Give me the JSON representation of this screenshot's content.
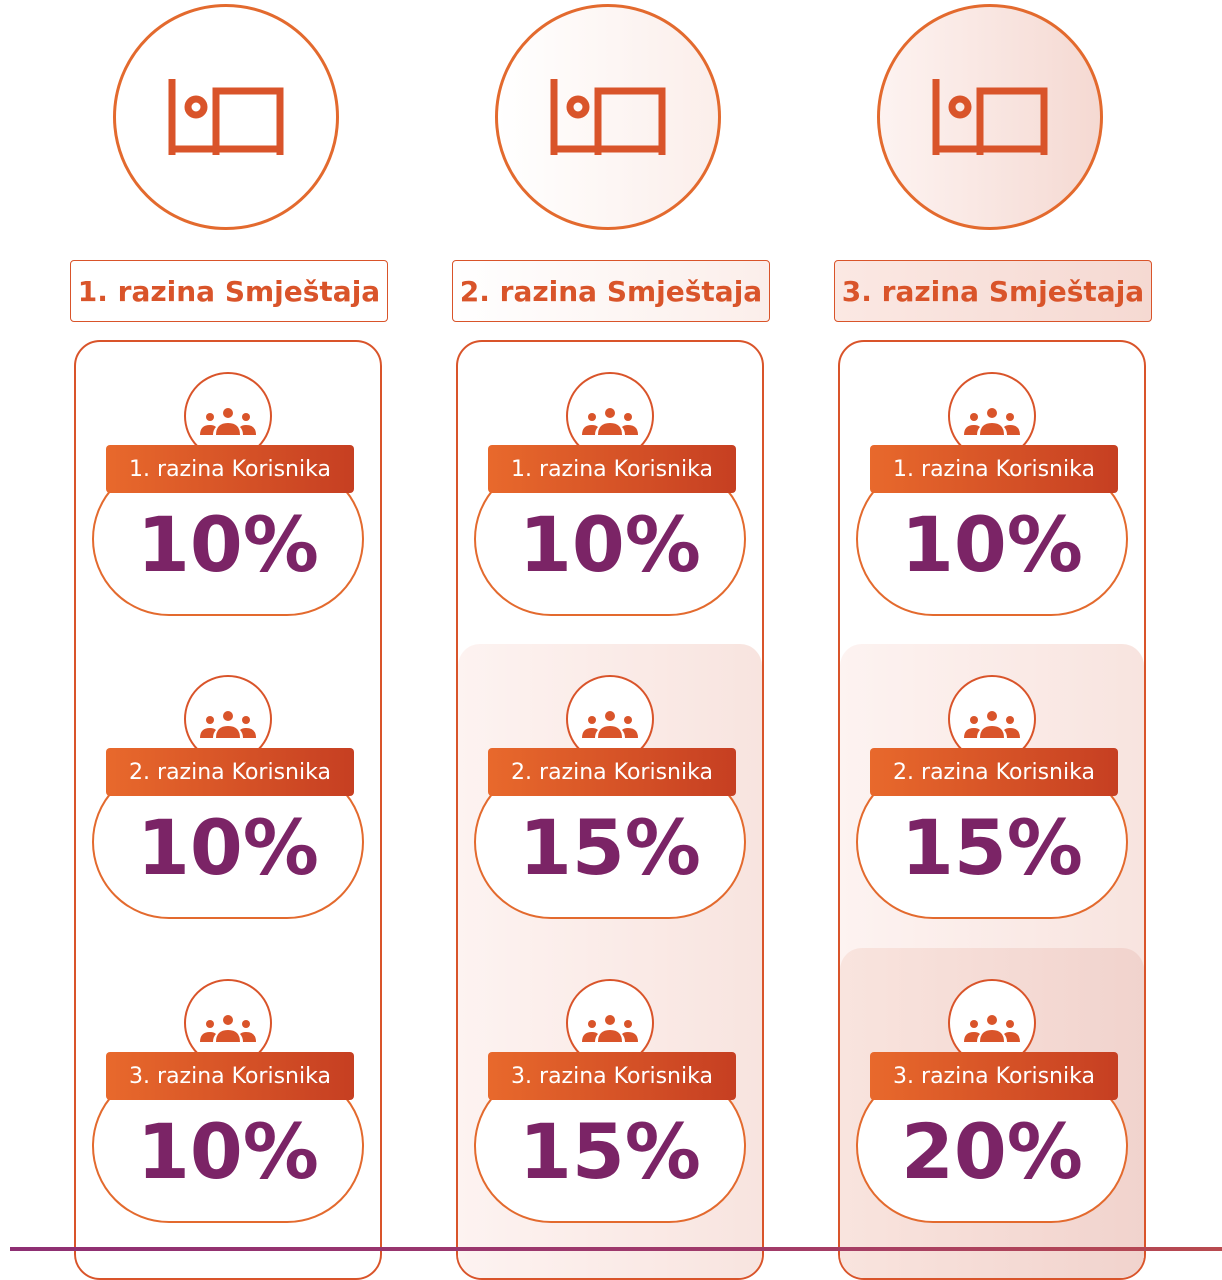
{
  "accommodation_levels": [
    {
      "title": "1. razina Smještaja",
      "icon": "bed-icon",
      "user_levels": [
        {
          "label": "1. razina Korisnika",
          "value": "10%"
        },
        {
          "label": "2. razina Korisnika",
          "value": "10%"
        },
        {
          "label": "3. razina Korisnika",
          "value": "10%"
        }
      ]
    },
    {
      "title": "2. razina Smještaja",
      "icon": "bed-icon",
      "user_levels": [
        {
          "label": "1. razina Korisnika",
          "value": "10%"
        },
        {
          "label": "2. razina Korisnika",
          "value": "15%"
        },
        {
          "label": "3. razina Korisnika",
          "value": "15%"
        }
      ]
    },
    {
      "title": "3. razina Smještaja",
      "icon": "bed-icon",
      "user_levels": [
        {
          "label": "1. razina Korisnika",
          "value": "10%"
        },
        {
          "label": "2. razina Korisnika",
          "value": "15%"
        },
        {
          "label": "3. razina Korisnika",
          "value": "20%"
        }
      ]
    }
  ],
  "user_icon": "people-group-icon",
  "colors": {
    "accent_orange": "#e36a2e",
    "accent_red": "#c63f22",
    "value_purple": "#7b2466",
    "tint_light": "#f9e4df"
  }
}
